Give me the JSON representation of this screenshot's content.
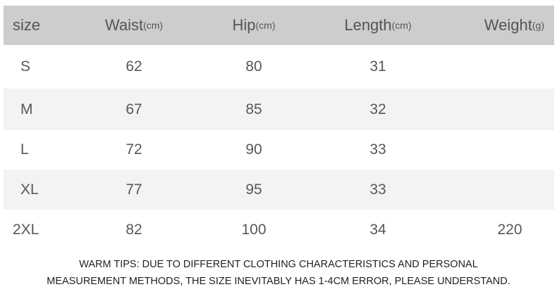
{
  "header": [
    {
      "label": "size",
      "unit": ""
    },
    {
      "label": "Waist",
      "unit": "(cm)"
    },
    {
      "label": "Hip",
      "unit": "(cm)"
    },
    {
      "label": "Length",
      "unit": "(cm)"
    },
    {
      "label": "Weight",
      "unit": "(g)"
    }
  ],
  "rows": [
    [
      "S",
      "62",
      "80",
      "31",
      ""
    ],
    [
      "M",
      "67",
      "85",
      "32",
      ""
    ],
    [
      "L",
      "72",
      "90",
      "33",
      ""
    ],
    [
      "XL",
      "77",
      "95",
      "33",
      ""
    ],
    [
      "2XL",
      "82",
      "100",
      "34",
      "220"
    ]
  ],
  "tips": {
    "line1": "WARM TIPS: DUE TO DIFFERENT CLOTHING CHARACTERISTICS AND PERSONAL",
    "line2": "MEASUREMENT METHODS, THE SIZE INEVITABLY HAS 1-4CM ERROR, PLEASE UNDERSTAND."
  },
  "colors": {
    "header_bg": "#cdcdcd",
    "stripe_bg": "#f3f3f3",
    "text": "#585858"
  }
}
